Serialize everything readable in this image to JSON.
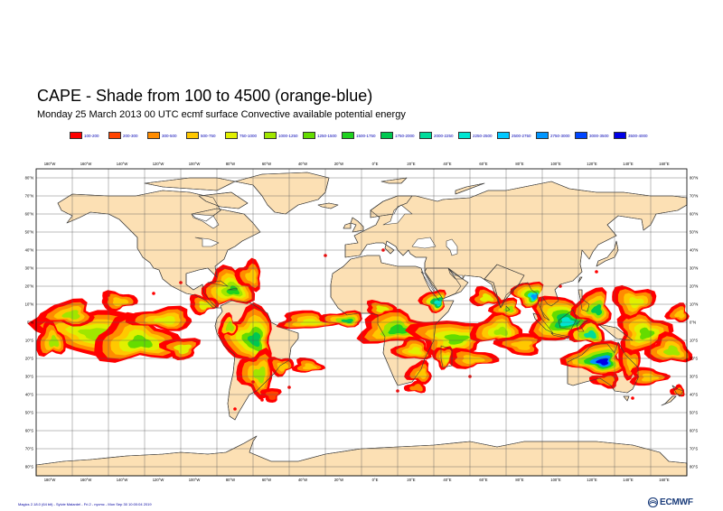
{
  "header": {
    "title": "CAPE - Shade from 100 to 4500 (orange-blue)",
    "subtitle": "Monday 25 March 2013 00 UTC ecmf surface  Convective available potential energy"
  },
  "legend": {
    "items": [
      {
        "label": "100-200",
        "color": "#ff0000"
      },
      {
        "label": "200-300",
        "color": "#ff4400"
      },
      {
        "label": "300-500",
        "color": "#ff8c00"
      },
      {
        "label": "500-750",
        "color": "#ffc800"
      },
      {
        "label": "750-1000",
        "color": "#e1f000"
      },
      {
        "label": "1000-1250",
        "color": "#a0e600"
      },
      {
        "label": "1250-1500",
        "color": "#64dc00"
      },
      {
        "label": "1500-1750",
        "color": "#1ed21e"
      },
      {
        "label": "1750-2000",
        "color": "#00c850"
      },
      {
        "label": "2000-2250",
        "color": "#00dc9b"
      },
      {
        "label": "2250-2500",
        "color": "#00e6d2"
      },
      {
        "label": "2500-2750",
        "color": "#00c8ff"
      },
      {
        "label": "2750-3000",
        "color": "#0096ff"
      },
      {
        "label": "3000-3500",
        "color": "#0046ff"
      },
      {
        "label": "3500-4000",
        "color": "#0000e6"
      }
    ]
  },
  "map": {
    "land_color": "#fce0b4",
    "ocean_color": "#ffffff",
    "top_labels": [
      "180°W",
      "160°W",
      "140°W",
      "120°W",
      "100°W",
      "80°W",
      "60°W",
      "40°W",
      "20°W",
      "0°E",
      "20°E",
      "40°E",
      "60°E",
      "80°E",
      "100°E",
      "120°E",
      "140°E",
      "160°E"
    ],
    "lat_labels_left": [
      "80°N",
      "70°N",
      "60°N",
      "50°N",
      "40°N",
      "30°N",
      "20°N",
      "10°N",
      "0°N",
      "10°S",
      "20°S",
      "30°S",
      "40°S",
      "50°S",
      "60°S",
      "70°S",
      "80°S"
    ],
    "lat_labels_right": [
      "80°N",
      "70°N",
      "60°N",
      "50°N",
      "40°N",
      "30°N",
      "20°N",
      "10°N",
      "0°N",
      "10°S",
      "20°S",
      "30°S",
      "40°S",
      "50°S",
      "60°S",
      "70°S",
      "80°S"
    ],
    "bottom_labels": [
      "180°W",
      "160°W",
      "140°W",
      "120°W",
      "100°W",
      "80°W",
      "60°W",
      "40°W",
      "20°W",
      "0°E",
      "20°E",
      "40°E",
      "60°E",
      "80°E",
      "100°E",
      "120°E",
      "140°E",
      "160°E"
    ]
  },
  "footer": {
    "metadata": "Magics 2.18.0 (64 bit) - Sylvie Malardel - Fri.2 - nyvmc - Mon Sep 30 10:00:04 2019",
    "logo_text": "ECMWF"
  }
}
